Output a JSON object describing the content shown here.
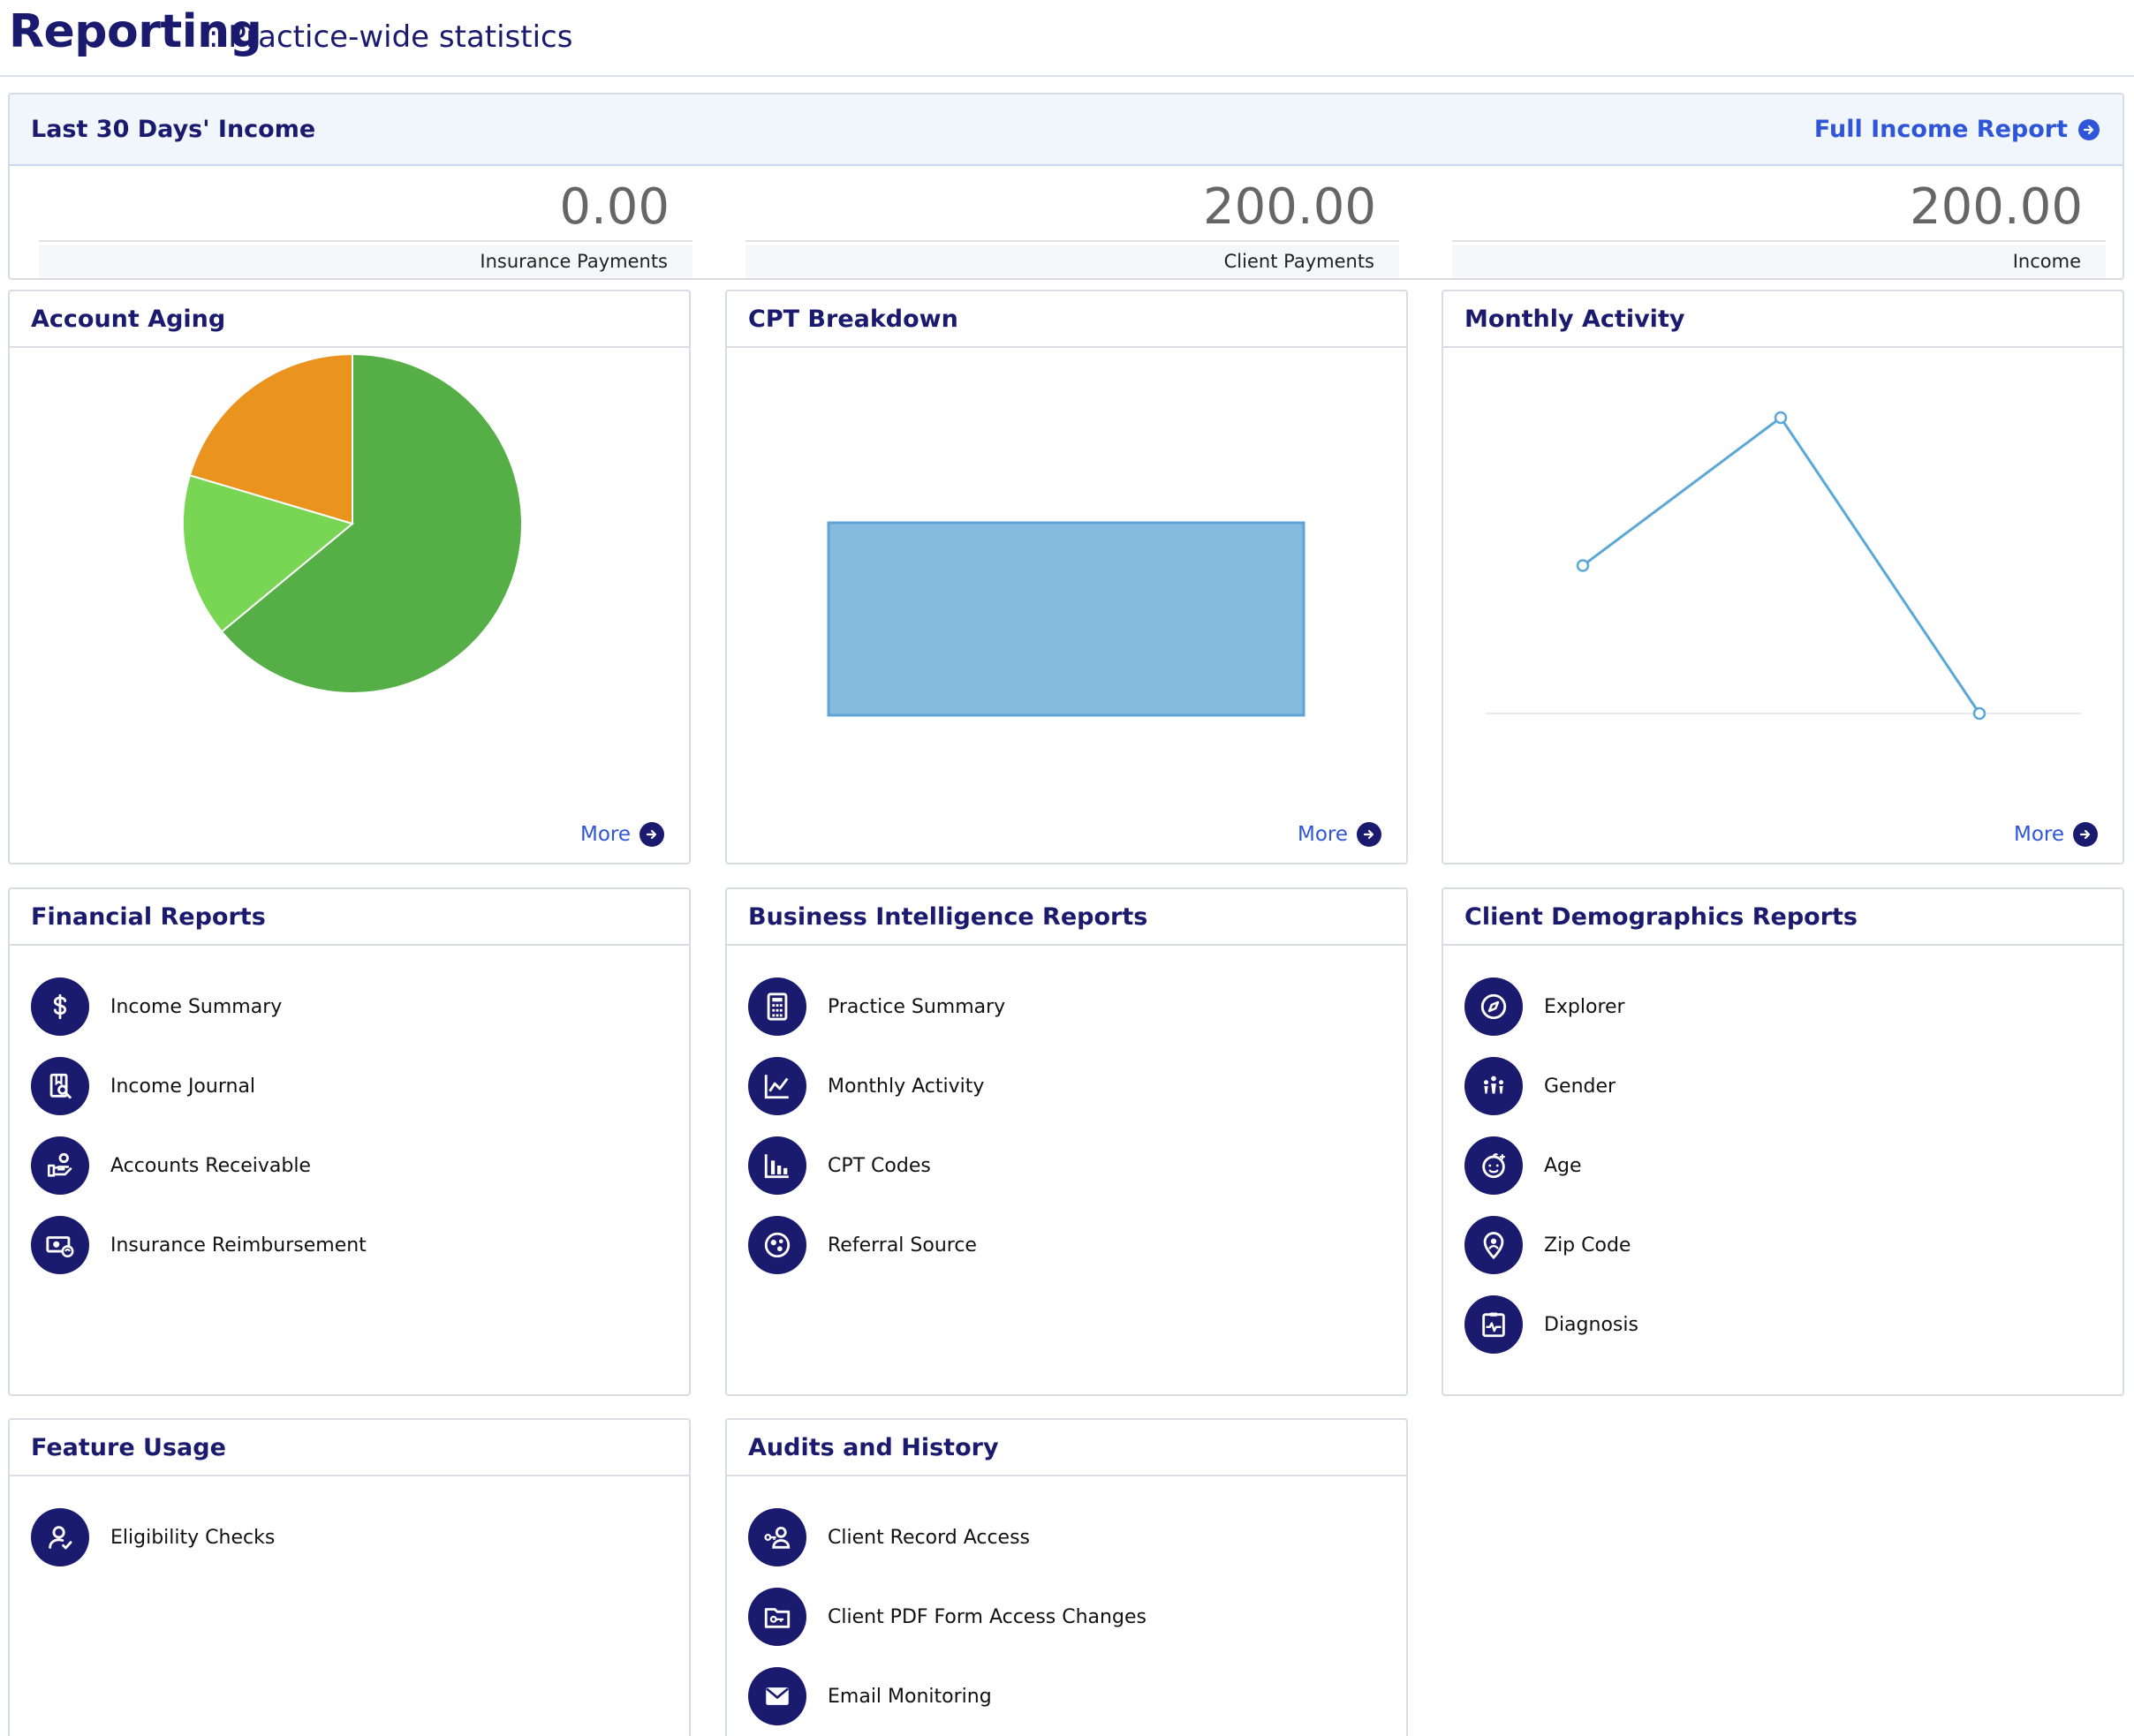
{
  "header": {
    "title": "Reporting",
    "subtitle": ": Practice-wide statistics"
  },
  "income": {
    "title": "Last 30 Days' Income",
    "full_report_link": "Full Income Report",
    "stats": [
      {
        "value": "0.00",
        "label": "Insurance Payments"
      },
      {
        "value": "200.00",
        "label": "Client Payments"
      },
      {
        "value": "200.00",
        "label": "Income"
      }
    ]
  },
  "more_label": "More",
  "account_aging": {
    "title": "Account Aging",
    "slices": [
      {
        "fraction": 0.64,
        "color": "#56ae46"
      },
      {
        "fraction": 0.156,
        "color": "#79d655"
      },
      {
        "fraction": 0.204,
        "color": "#ea941f"
      }
    ]
  },
  "cpt_breakdown": {
    "title": "CPT Breakdown",
    "bar_color": "#86bade",
    "bar_border": "#5fa3d6"
  },
  "monthly_activity": {
    "title": "Monthly Activity",
    "line_color": "#5aa7d8",
    "values": [
      0.5,
      1.0,
      0.0
    ]
  },
  "financial_reports": {
    "title": "Financial Reports",
    "items": [
      {
        "label": "Income Summary",
        "icon": "dollar-icon"
      },
      {
        "label": "Income Journal",
        "icon": "journal-search-icon"
      },
      {
        "label": "Accounts Receivable",
        "icon": "hand-user-icon"
      },
      {
        "label": "Insurance Reimbursement",
        "icon": "money-refresh-icon"
      }
    ]
  },
  "bi_reports": {
    "title": "Business Intelligence Reports",
    "items": [
      {
        "label": "Practice Summary",
        "icon": "calculator-icon"
      },
      {
        "label": "Monthly Activity",
        "icon": "line-chart-icon"
      },
      {
        "label": "CPT Codes",
        "icon": "bar-chart-icon"
      },
      {
        "label": "Referral Source",
        "icon": "network-icon"
      }
    ]
  },
  "demographics_reports": {
    "title": "Client Demographics Reports",
    "items": [
      {
        "label": "Explorer",
        "icon": "compass-icon"
      },
      {
        "label": "Gender",
        "icon": "people-icon"
      },
      {
        "label": "Age",
        "icon": "baby-face-icon"
      },
      {
        "label": "Zip Code",
        "icon": "map-pin-icon"
      },
      {
        "label": "Diagnosis",
        "icon": "clipboard-pulse-icon"
      }
    ]
  },
  "feature_usage": {
    "title": "Feature Usage",
    "items": [
      {
        "label": "Eligibility Checks",
        "icon": "user-check-icon"
      }
    ]
  },
  "audits": {
    "title": "Audits and History",
    "items": [
      {
        "label": "Client Record Access",
        "icon": "user-key-icon"
      },
      {
        "label": "Client PDF Form Access Changes",
        "icon": "folder-key-icon"
      },
      {
        "label": "Email Monitoring",
        "icon": "envelope-icon"
      }
    ]
  }
}
